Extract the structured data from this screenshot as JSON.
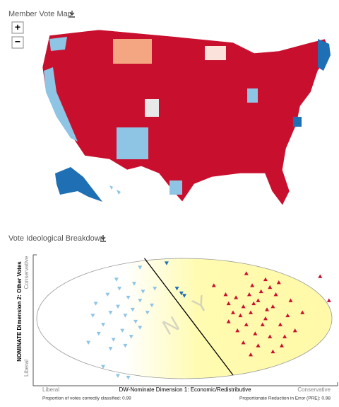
{
  "map_title": "Member Vote Map",
  "zoom_in": "+",
  "zoom_out": "−",
  "breakdown_title": "Vote Ideological Breakdown",
  "chart_data": {
    "type": "scatter",
    "ylabel": "NOMINATE Dimension 2: Other Votes",
    "ylabel_top": "Conservative",
    "ylabel_bottom": "Liberal",
    "xlabel": "DW-Nominate Dimension 1: Economic/Redistributive",
    "xlabel_left": "Liberal",
    "xlabel_right": "Conservative",
    "note_left": "Proportion of votes correctly classified: 0.99",
    "note_right": "Proportionate Reduction in Error (PRE): 0.98",
    "nay_label": "N",
    "yea_label": "Y",
    "xlim": [
      -1,
      1
    ],
    "ylim": [
      -1,
      1
    ],
    "cut_line": {
      "x": [
        -0.27,
        0.33
      ],
      "y": [
        1,
        -0.94
      ]
    },
    "series": [
      {
        "color": "#8ec4e4",
        "marker": "down",
        "x": [
          -0.5,
          -0.45,
          -0.4,
          -0.35,
          -0.55,
          -0.3,
          -0.42,
          -0.38,
          -0.6,
          -0.25,
          -0.48,
          -0.52,
          -0.33,
          -0.44,
          -0.28,
          -0.58,
          -0.36,
          -0.62,
          -0.4,
          -0.3,
          -0.5,
          -0.46,
          -0.34,
          -0.22,
          -0.65,
          -0.55,
          -0.45,
          -0.38,
          -0.3,
          -0.2
        ],
        "y": [
          0.1,
          0.2,
          0.05,
          0.15,
          -0.1,
          0.3,
          -0.2,
          0.35,
          0.25,
          0.1,
          -0.35,
          0.4,
          -0.05,
          0.5,
          0.45,
          -0.25,
          -0.3,
          0.05,
          -0.45,
          -0.15,
          -0.5,
          0.65,
          0.58,
          0.22,
          -0.4,
          -0.8,
          -0.95,
          -0.98,
          0.85,
          0.5
        ]
      },
      {
        "color": "#1f6fb4",
        "marker": "down",
        "x": [
          -0.12,
          -0.05,
          -0.02,
          0.0
        ],
        "y": [
          0.92,
          0.5,
          0.42,
          0.38
        ]
      },
      {
        "color": "#c8102e",
        "marker": "up",
        "x": [
          0.4,
          0.45,
          0.5,
          0.55,
          0.35,
          0.6,
          0.42,
          0.48,
          0.52,
          0.38,
          0.65,
          0.58,
          0.3,
          0.44,
          0.62,
          0.5,
          0.7,
          0.36,
          0.56,
          0.46,
          0.68,
          0.4,
          0.6,
          0.33,
          0.53,
          0.47,
          0.72,
          0.28,
          0.64,
          0.75,
          0.3,
          0.55,
          0.42,
          0.8,
          0.2,
          0.58,
          0.66,
          0.92,
          0.98,
          0.45
        ],
        "y": [
          0.2,
          0.1,
          0.3,
          0.0,
          0.35,
          0.2,
          -0.1,
          -0.25,
          0.45,
          0.05,
          -0.1,
          -0.3,
          0.25,
          0.4,
          0.4,
          -0.45,
          0.05,
          -0.2,
          0.15,
          0.55,
          -0.3,
          -0.4,
          -0.55,
          0.1,
          -0.1,
          0.25,
          0.3,
          0.4,
          0.6,
          -0.2,
          -0.05,
          0.65,
          0.75,
          0.1,
          0.55,
          0.52,
          -0.45,
          0.7,
          0.3,
          -0.6
        ]
      }
    ]
  }
}
